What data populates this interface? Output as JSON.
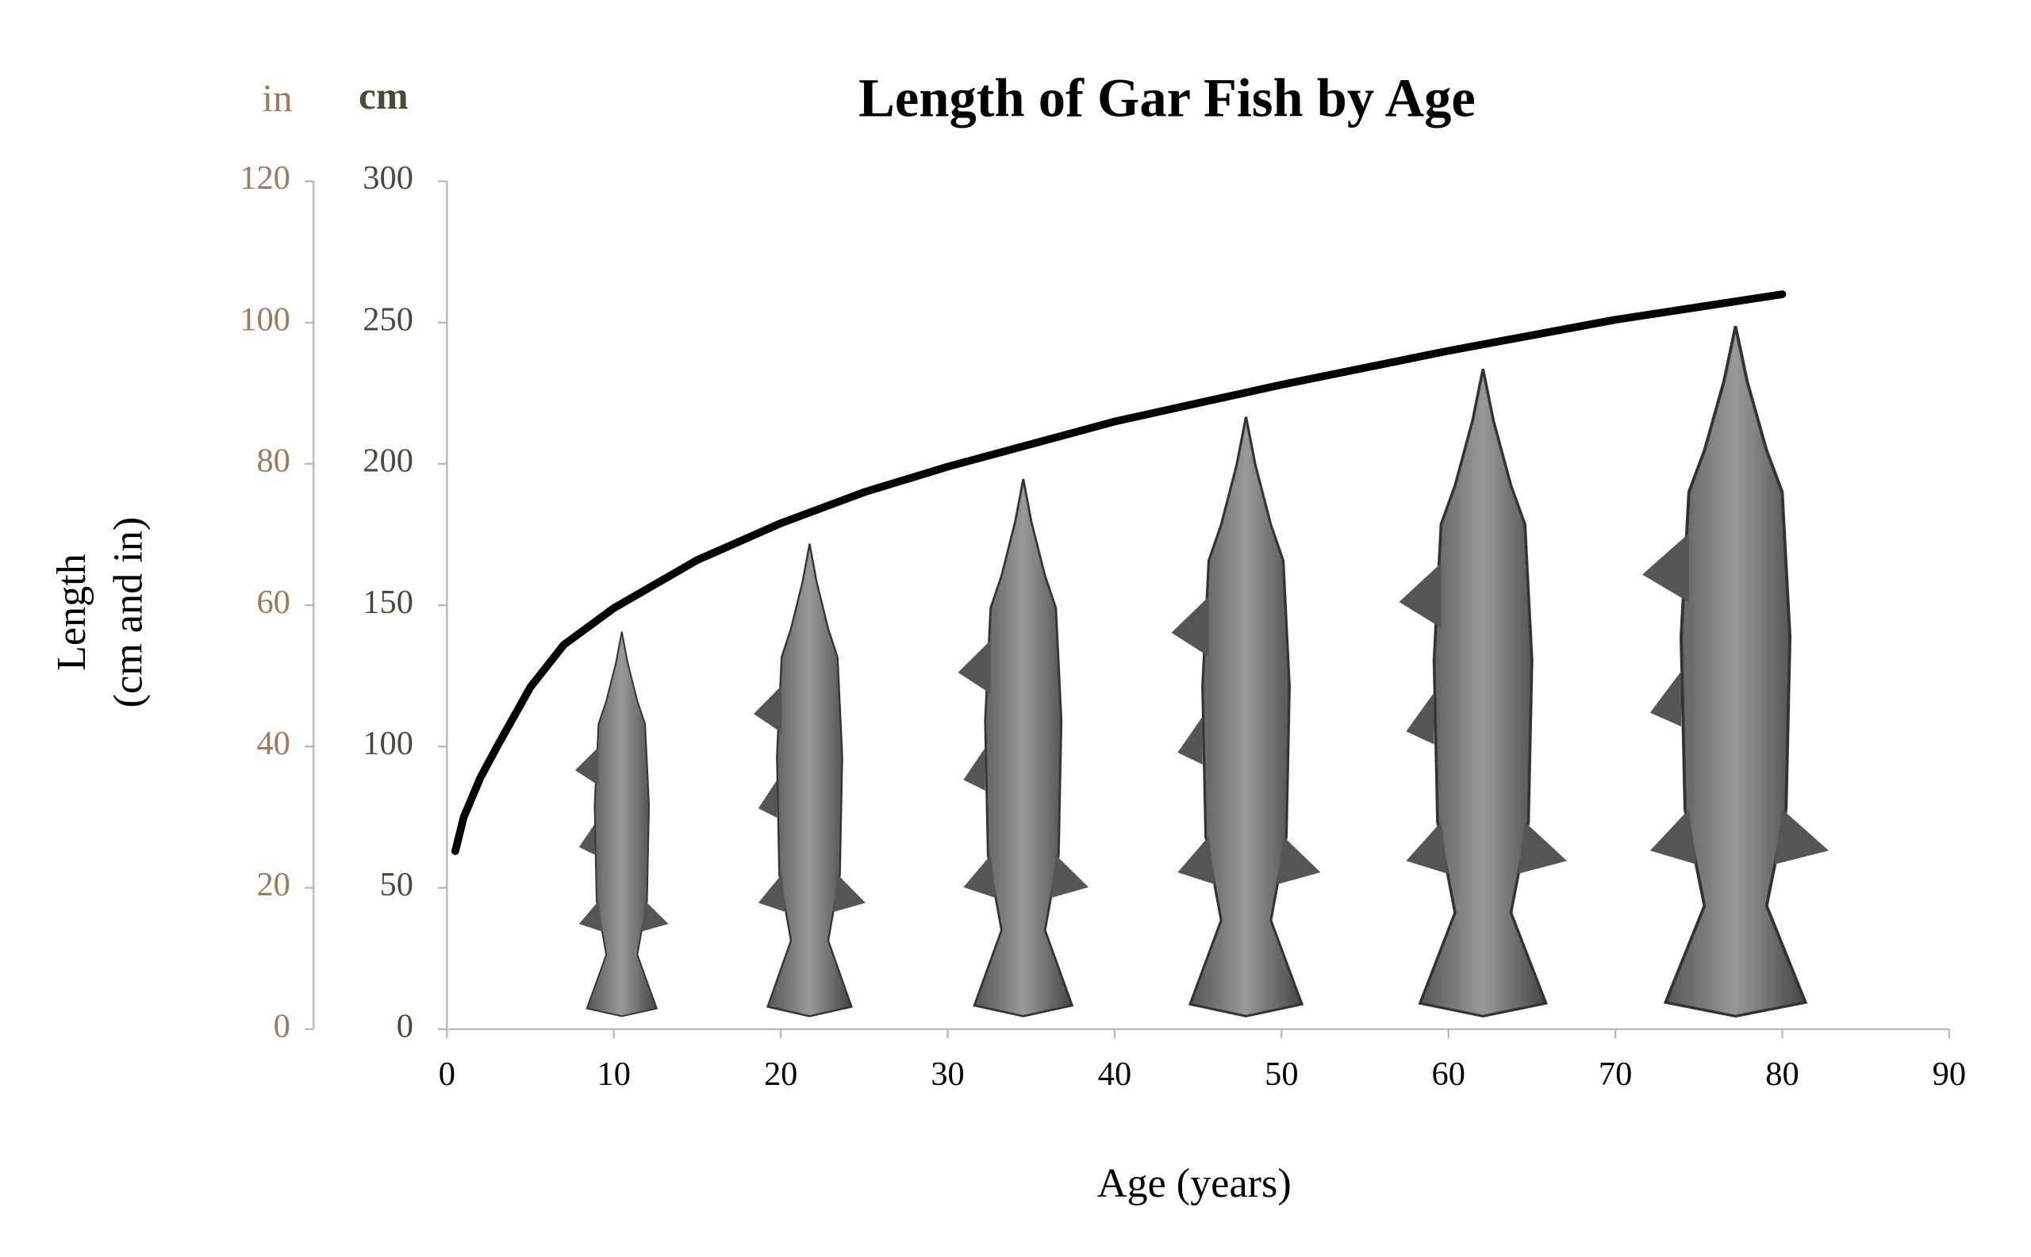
{
  "chart_data": {
    "type": "line",
    "title": "Length of Gar Fish by Age",
    "x_label": "Age (years)",
    "y_label": [
      "Length",
      "(cm and in)"
    ],
    "y_unit": "cm",
    "y2_unit": "in",
    "x": [
      0.5,
      1,
      2,
      3,
      5,
      7,
      10,
      15,
      20,
      25,
      30,
      40,
      50,
      60,
      70,
      80
    ],
    "series": [
      {
        "color": "#000000",
        "values": [
          63,
          75,
          89,
          100,
          121,
          136,
          149,
          166,
          179,
          190,
          199,
          215,
          228,
          240,
          251,
          260
        ]
      }
    ],
    "xlim": [
      0,
      90
    ],
    "xticks": [
      0,
      10,
      20,
      30,
      40,
      50,
      60,
      70,
      80,
      90
    ],
    "ylim": [
      0,
      300
    ],
    "yticks": [
      0,
      50,
      100,
      150,
      200,
      250,
      300
    ],
    "y2lim": [
      0,
      120
    ],
    "y2ticks": [
      0,
      20,
      40,
      60,
      80,
      100,
      120
    ],
    "axis_color": "#bbbbbb",
    "y_color": "#4a4a38",
    "y2_color": "#9c7a5c"
  }
}
